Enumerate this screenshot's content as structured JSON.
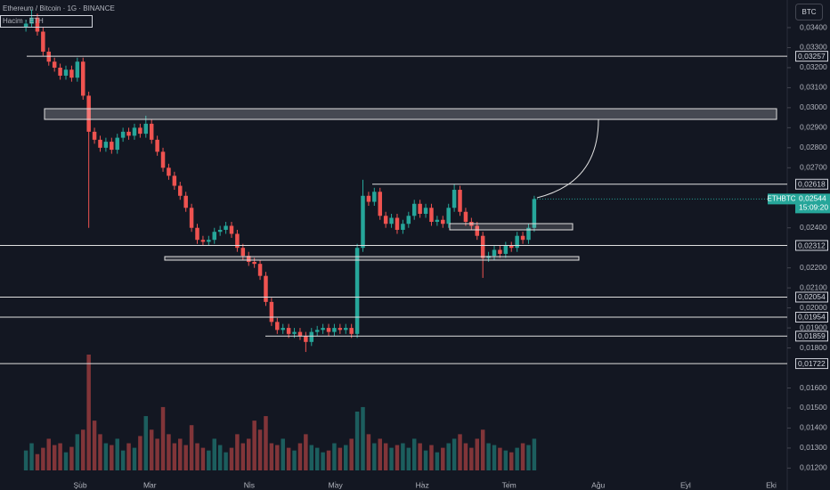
{
  "header": {
    "title": "Ethereum / Bitcoin · 1G · BINANCE",
    "volume_legend": "Hacim · ETH",
    "currency_button": "BTC"
  },
  "chart_data": {
    "type": "candlestick",
    "xlim": [
      -4.54,
      133.3
    ],
    "xticks": [
      {
        "value": 9.5,
        "label": "Şub"
      },
      {
        "value": 21.7,
        "label": "Mar"
      },
      {
        "value": 39.1,
        "label": "Nis"
      },
      {
        "value": 54.2,
        "label": "May"
      },
      {
        "value": 69.4,
        "label": "Haz"
      },
      {
        "value": 84.6,
        "label": "Tem"
      },
      {
        "value": 100.2,
        "label": "Ağu"
      },
      {
        "value": 115.5,
        "label": "Eyl"
      },
      {
        "value": 130.5,
        "label": "Eki"
      }
    ],
    "ylim": [
      0.01135,
      0.03538
    ],
    "yticks": [
      {
        "value": 0.034,
        "label": "0,03400"
      },
      {
        "value": 0.033,
        "label": "0,03300"
      },
      {
        "value": 0.032,
        "label": "0,03200"
      },
      {
        "value": 0.031,
        "label": "0,03100"
      },
      {
        "value": 0.03,
        "label": "0,03000"
      },
      {
        "value": 0.029,
        "label": "0,02900"
      },
      {
        "value": 0.028,
        "label": "0,02800"
      },
      {
        "value": 0.027,
        "label": "0,02700"
      },
      {
        "value": 0.024,
        "label": "0,02400"
      },
      {
        "value": 0.022,
        "label": "0,02200"
      },
      {
        "value": 0.021,
        "label": "0,02100"
      },
      {
        "value": 0.02,
        "label": "0,02000"
      },
      {
        "value": 0.019,
        "label": "0,01900"
      },
      {
        "value": 0.018,
        "label": "0,01800"
      },
      {
        "value": 0.016,
        "label": "0,01600"
      },
      {
        "value": 0.015,
        "label": "0,01500"
      },
      {
        "value": 0.014,
        "label": "0,01400"
      },
      {
        "value": 0.013,
        "label": "0,01300"
      },
      {
        "value": 0.012,
        "label": "0,01200"
      }
    ],
    "up_color": "#26a69a",
    "down_color": "#ef5350",
    "open": [
      0.034,
      0.0342,
      0.0345,
      0.0338,
      0.0328,
      0.0323,
      0.032,
      0.0316,
      0.0319,
      0.0315,
      0.0323,
      0.0306,
      0.0288,
      0.0284,
      0.028,
      0.0283,
      0.0279,
      0.0285,
      0.0288,
      0.0286,
      0.029,
      0.0287,
      0.0292,
      0.0284,
      0.0278,
      0.027,
      0.0266,
      0.0261,
      0.0256,
      0.025,
      0.024,
      0.0234,
      0.0233,
      0.0234,
      0.0238,
      0.0239,
      0.0241,
      0.0237,
      0.023,
      0.0226,
      0.0223,
      0.0222,
      0.0216,
      0.0203,
      0.0193,
      0.0189,
      0.019,
      0.0187,
      0.0188,
      0.0186,
      0.0183,
      0.0188,
      0.0189,
      0.019,
      0.0188,
      0.019,
      0.0189,
      0.019,
      0.0187,
      0.023,
      0.0256,
      0.0253,
      0.0258,
      0.0246,
      0.0242,
      0.0245,
      0.0239,
      0.0242,
      0.0246,
      0.0252,
      0.0247,
      0.025,
      0.0243,
      0.0244,
      0.0242,
      0.025,
      0.0259,
      0.0248,
      0.0243,
      0.0241,
      0.0236,
      0.0225,
      0.0226,
      0.0229,
      0.0227,
      0.0231,
      0.023,
      0.0236,
      0.0234,
      0.024
    ],
    "high": [
      0.0344,
      0.0349,
      0.0347,
      0.034,
      0.033,
      0.0325,
      0.0322,
      0.0321,
      0.0321,
      0.0325,
      0.0325,
      0.0308,
      0.029,
      0.0286,
      0.0285,
      0.0285,
      0.0287,
      0.029,
      0.029,
      0.0292,
      0.0292,
      0.0296,
      0.0294,
      0.0286,
      0.028,
      0.0272,
      0.0268,
      0.0263,
      0.0258,
      0.0252,
      0.0242,
      0.0236,
      0.0236,
      0.024,
      0.0241,
      0.0243,
      0.0243,
      0.0239,
      0.0232,
      0.0228,
      0.0225,
      0.0224,
      0.0218,
      0.0205,
      0.0195,
      0.0192,
      0.0192,
      0.019,
      0.019,
      0.0188,
      0.019,
      0.0191,
      0.0192,
      0.0192,
      0.0192,
      0.0192,
      0.0192,
      0.0192,
      0.0232,
      0.0264,
      0.0258,
      0.026,
      0.026,
      0.0248,
      0.0247,
      0.0247,
      0.0244,
      0.0248,
      0.0254,
      0.0254,
      0.0252,
      0.0252,
      0.0246,
      0.0246,
      0.0252,
      0.02618,
      0.0261,
      0.025,
      0.0245,
      0.0243,
      0.0238,
      0.0228,
      0.0231,
      0.0231,
      0.0233,
      0.0233,
      0.0238,
      0.0238,
      0.0242,
      0.0256
    ],
    "low": [
      0.0338,
      0.034,
      0.0336,
      0.0326,
      0.0321,
      0.0318,
      0.0314,
      0.0314,
      0.0313,
      0.0313,
      0.0304,
      0.024,
      0.0282,
      0.0278,
      0.0278,
      0.0277,
      0.0277,
      0.0283,
      0.0284,
      0.0284,
      0.0285,
      0.0285,
      0.0282,
      0.0276,
      0.0268,
      0.0264,
      0.0259,
      0.0254,
      0.0248,
      0.0238,
      0.0232,
      0.0231,
      0.0231,
      0.0232,
      0.0236,
      0.0237,
      0.0235,
      0.0228,
      0.0224,
      0.0221,
      0.022,
      0.0214,
      0.0201,
      0.0191,
      0.0187,
      0.0187,
      0.0185,
      0.0185,
      0.0184,
      0.0178,
      0.0181,
      0.0186,
      0.0187,
      0.0186,
      0.0186,
      0.0187,
      0.0187,
      0.0185,
      0.0185,
      0.0228,
      0.0251,
      0.0251,
      0.0244,
      0.024,
      0.024,
      0.0237,
      0.0237,
      0.024,
      0.0244,
      0.0245,
      0.0245,
      0.0241,
      0.0241,
      0.024,
      0.024,
      0.0248,
      0.0246,
      0.0241,
      0.0239,
      0.0234,
      0.0215,
      0.0223,
      0.0224,
      0.0225,
      0.0225,
      0.0228,
      0.0228,
      0.0232,
      0.0232,
      0.0238
    ],
    "close": [
      0.0342,
      0.0345,
      0.0338,
      0.0328,
      0.0323,
      0.032,
      0.0316,
      0.0319,
      0.0315,
      0.0323,
      0.0306,
      0.0288,
      0.0284,
      0.028,
      0.0283,
      0.0279,
      0.0285,
      0.0288,
      0.0286,
      0.029,
      0.0287,
      0.0292,
      0.0284,
      0.0278,
      0.027,
      0.0266,
      0.0261,
      0.0256,
      0.025,
      0.024,
      0.0234,
      0.0233,
      0.0234,
      0.0238,
      0.0239,
      0.0241,
      0.0237,
      0.023,
      0.0226,
      0.0223,
      0.0222,
      0.0216,
      0.0203,
      0.0193,
      0.0189,
      0.019,
      0.0187,
      0.0188,
      0.0186,
      0.0183,
      0.0188,
      0.0189,
      0.019,
      0.0188,
      0.019,
      0.0189,
      0.019,
      0.0187,
      0.023,
      0.0256,
      0.0253,
      0.0258,
      0.0246,
      0.0242,
      0.0245,
      0.0239,
      0.0242,
      0.0246,
      0.0252,
      0.0247,
      0.025,
      0.0243,
      0.0244,
      0.0242,
      0.025,
      0.0259,
      0.0248,
      0.0243,
      0.0241,
      0.0236,
      0.0225,
      0.0226,
      0.0229,
      0.0227,
      0.0231,
      0.023,
      0.0236,
      0.0234,
      0.024,
      0.02544
    ],
    "volume": [
      22,
      30,
      18,
      25,
      35,
      28,
      30,
      20,
      26,
      40,
      45,
      128,
      55,
      40,
      30,
      28,
      35,
      22,
      30,
      25,
      38,
      60,
      45,
      35,
      70,
      40,
      30,
      35,
      28,
      50,
      30,
      25,
      22,
      35,
      28,
      20,
      25,
      40,
      30,
      35,
      55,
      45,
      60,
      30,
      28,
      35,
      25,
      22,
      30,
      40,
      28,
      25,
      20,
      22,
      30,
      25,
      28,
      35,
      65,
      70,
      40,
      30,
      35,
      30,
      25,
      28,
      30,
      25,
      35,
      30,
      22,
      28,
      20,
      25,
      30,
      35,
      40,
      30,
      25,
      35,
      45,
      30,
      28,
      25,
      22,
      20,
      25,
      30,
      28,
      35
    ],
    "levels": [
      {
        "value": 0.03257,
        "label": "0,03257"
      },
      {
        "value": 0.02618,
        "label": "0,02618"
      },
      {
        "value": 0.02312,
        "label": "0,02312"
      },
      {
        "value": 0.02054,
        "label": "0,02054"
      },
      {
        "value": 0.01954,
        "label": "0,01954"
      },
      {
        "value": 0.01859,
        "label": "0,01859"
      },
      {
        "value": 0.01722,
        "label": "0,01722"
      }
    ],
    "last_price": {
      "symbol": "ETHBTC",
      "value": 0.02544,
      "label": "0,02544",
      "countdown": "15:09:20"
    }
  }
}
